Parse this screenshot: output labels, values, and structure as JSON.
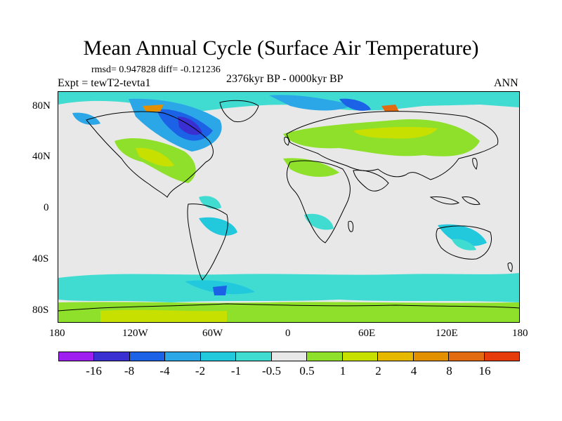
{
  "title": "Mean Annual Cycle (Surface Air Temperature)",
  "stats_text": "rmsd= 0.947828 diff= -0.121236",
  "experiment": "Expt = tewT2-tevta1",
  "period": "2376kyr BP - 0000kyr BP",
  "season": "ANN",
  "lat_labels": [
    "80N",
    "40N",
    "0",
    "40S",
    "80S"
  ],
  "lon_labels": [
    "180",
    "120W",
    "60W",
    "0",
    "60E",
    "120E",
    "180"
  ],
  "colorbar": {
    "colors": [
      "#9e1ff0",
      "#3a2fd0",
      "#1c62e6",
      "#2ba7e8",
      "#22c9dc",
      "#40dcd2",
      "#e8e8e8",
      "#8ee02a",
      "#c8e000",
      "#e6b800",
      "#e39000",
      "#e26a10",
      "#e63c0c"
    ],
    "labels": [
      "-16",
      "-8",
      "-4",
      "-2",
      "-1",
      "-0.5",
      "0.5",
      "1",
      "2",
      "4",
      "8",
      "16"
    ]
  },
  "map_background": "#e8e8e8",
  "coastline_color": "#000000"
}
